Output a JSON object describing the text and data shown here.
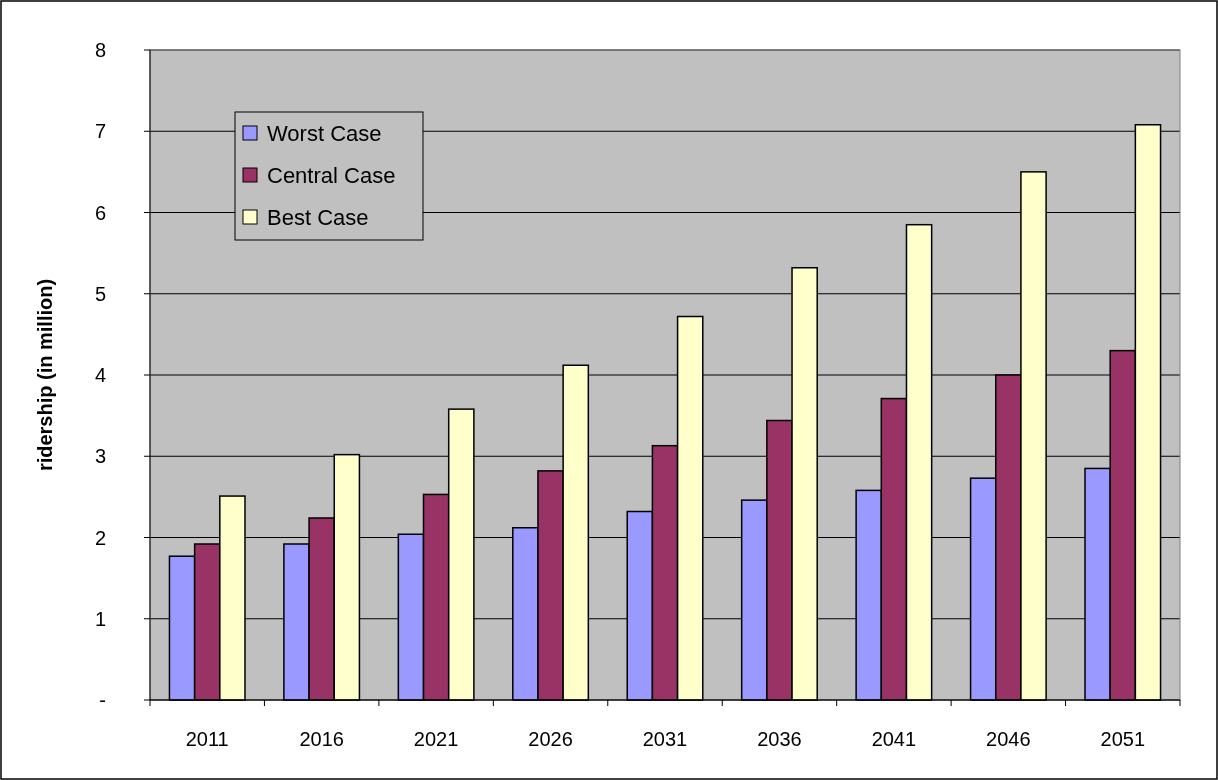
{
  "chart_data": {
    "type": "bar",
    "ylabel": "ridership (in million)",
    "categories": [
      "2011",
      "2016",
      "2021",
      "2026",
      "2031",
      "2036",
      "2041",
      "2046",
      "2051"
    ],
    "series": [
      {
        "name": "Worst Case",
        "color": "#9999ff",
        "values": [
          1.77,
          1.92,
          2.04,
          2.12,
          2.32,
          2.46,
          2.58,
          2.73,
          2.85
        ]
      },
      {
        "name": "Central Case",
        "color": "#993366",
        "values": [
          1.92,
          2.24,
          2.53,
          2.82,
          3.13,
          3.44,
          3.71,
          4.0,
          4.3
        ]
      },
      {
        "name": "Best Case",
        "color": "#ffffcc",
        "values": [
          2.51,
          3.02,
          3.58,
          4.12,
          4.72,
          5.32,
          5.85,
          6.5,
          7.08
        ]
      }
    ],
    "ylim": [
      0,
      8
    ],
    "yticks": [
      {
        "value": 0,
        "label": "-"
      },
      1,
      2,
      3,
      4,
      5,
      6,
      7,
      8
    ],
    "grid": "y",
    "legend": "top left"
  }
}
